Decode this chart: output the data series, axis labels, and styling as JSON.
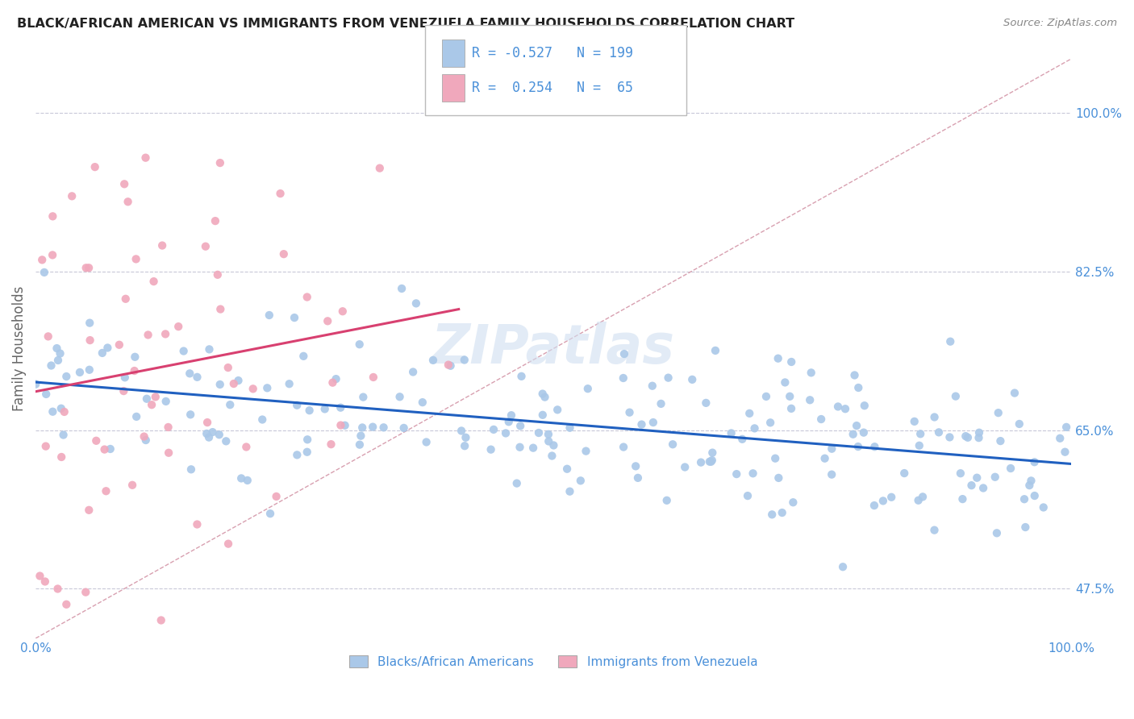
{
  "title": "BLACK/AFRICAN AMERICAN VS IMMIGRANTS FROM VENEZUELA FAMILY HOUSEHOLDS CORRELATION CHART",
  "source": "Source: ZipAtlas.com",
  "ylabel": "Family Households",
  "xlim": [
    0.0,
    1.0
  ],
  "ylim": [
    0.42,
    1.06
  ],
  "yticks": [
    0.475,
    0.65,
    0.825,
    1.0
  ],
  "ytick_labels": [
    "47.5%",
    "65.0%",
    "82.5%",
    "100.0%"
  ],
  "legend_blue_R": "-0.527",
  "legend_blue_N": "199",
  "legend_pink_R": "0.254",
  "legend_pink_N": "65",
  "blue_color": "#aac8e8",
  "pink_color": "#f0a8bc",
  "blue_line_color": "#2060c0",
  "pink_line_color": "#d84070",
  "ref_line_color": "#d8a0b0",
  "grid_color": "#c8c8d8",
  "title_color": "#222222",
  "source_color": "#888888",
  "tick_color": "#4a90d9",
  "background_color": "#ffffff",
  "watermark": "ZIPatlas",
  "blue_N": 199,
  "pink_N": 65,
  "blue_R": -0.527,
  "pink_R": 0.254,
  "blue_seed": 12345,
  "pink_seed": 9999
}
